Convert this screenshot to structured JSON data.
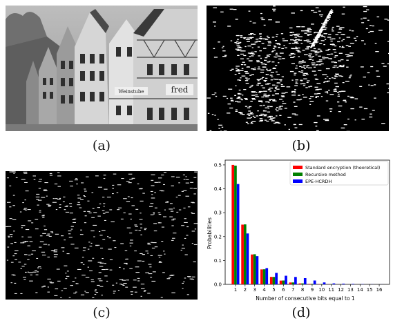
{
  "figure": {
    "captions": {
      "a": "(a)",
      "b": "(b)",
      "c": "(c)",
      "d": "(d)"
    },
    "photo_signs": {
      "sign_left": "Weinstube",
      "sign_right": "fred"
    }
  },
  "chart_data": {
    "type": "bar",
    "title": "",
    "xlabel": "Number of consecutive bits equal to 1",
    "ylabel": "Probabilities",
    "categories": [
      "1",
      "2",
      "3",
      "4",
      "5",
      "6",
      "7",
      "8",
      "9",
      "10",
      "11",
      "12",
      "13",
      "14",
      "15",
      "16"
    ],
    "ylim": [
      0,
      0.52
    ],
    "yticks": [
      "0.0",
      "0.1",
      "0.2",
      "0.3",
      "0.4",
      "0.5"
    ],
    "legend_position": "top-right",
    "series": [
      {
        "name": "Standard encryption (theoretical)",
        "color": "#ff0000",
        "values": [
          0.5,
          0.25,
          0.125,
          0.0625,
          0.03125,
          0.0156,
          0.0078,
          0.0039,
          0.002,
          0.001,
          0.0005,
          0.0002,
          0.0001,
          0.0001,
          0.0,
          0.0
        ]
      },
      {
        "name": "Recursive method",
        "color": "#008000",
        "values": [
          0.497,
          0.251,
          0.126,
          0.063,
          0.031,
          0.016,
          0.008,
          0.004,
          0.002,
          0.001,
          0.0005,
          0.0002,
          0.0001,
          0.0001,
          0.0,
          0.0
        ]
      },
      {
        "name": "EPE-HCRDH",
        "color": "#0000ff",
        "values": [
          0.42,
          0.213,
          0.118,
          0.068,
          0.048,
          0.036,
          0.031,
          0.026,
          0.016,
          0.008,
          0.004,
          0.003,
          0.002,
          0.001,
          0.0005,
          0.0003
        ]
      }
    ]
  }
}
